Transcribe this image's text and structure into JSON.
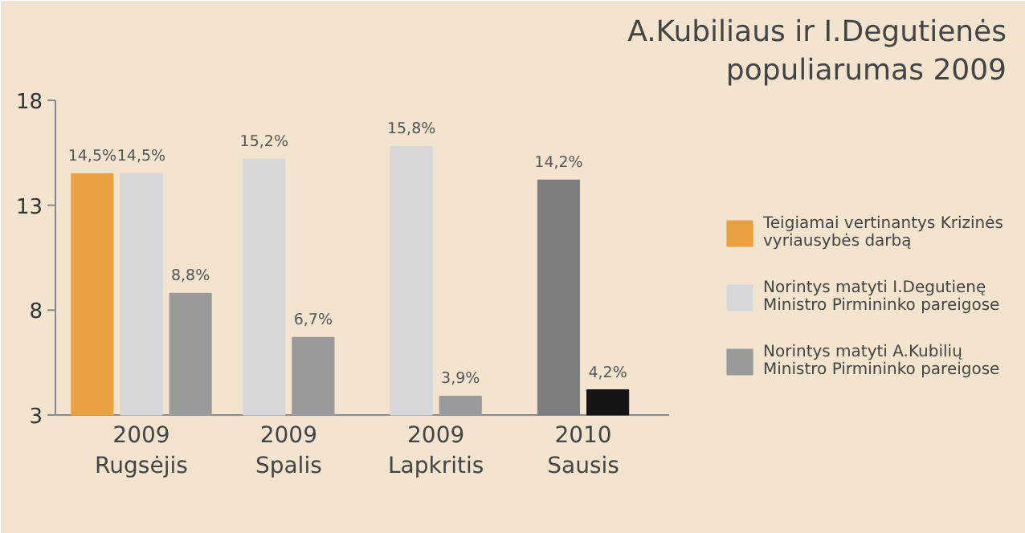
{
  "chart_data": {
    "type": "bar",
    "title": "A.Kubiliaus ir I.Degutienės populiarumas 2009",
    "categories": [
      "2009 Rugsėjis",
      "2009 Spalis",
      "2009 Lapkritis",
      "2010 Sausis"
    ],
    "series": [
      {
        "name": "Teigiamai vertinantys Krizinės vyriausybės darbą",
        "color": "#e8a040",
        "values": [
          14.5,
          null,
          null,
          null
        ],
        "value_labels": [
          "14,5%",
          null,
          null,
          null
        ]
      },
      {
        "name": "Norintys matyti I.Degutienę Ministro Pirmininko pareigose",
        "color": "#d7d7d9",
        "values": [
          14.5,
          15.2,
          15.8,
          null
        ],
        "value_labels": [
          "14,5%",
          "15,2%",
          "15,8%",
          null
        ]
      },
      {
        "name": "Norintys matyti A.Kubilių Ministro Pirmininko pareigose",
        "color": "#9a9a9a",
        "values": [
          8.8,
          6.7,
          3.9,
          null
        ],
        "value_labels": [
          "8,8%",
          "6,7%",
          "3,9%",
          null
        ]
      },
      {
        "color": "#7f7f7f",
        "values": [
          null,
          null,
          null,
          14.2
        ],
        "value_labels": [
          null,
          null,
          null,
          "14,2%"
        ]
      },
      {
        "color": "#151515",
        "values": [
          null,
          null,
          null,
          4.2
        ],
        "value_labels": [
          null,
          null,
          null,
          "4,2%"
        ]
      }
    ],
    "ylim": [
      3,
      18
    ],
    "yticks": [
      3,
      8,
      13,
      18
    ],
    "grid": false,
    "legend": "right"
  }
}
